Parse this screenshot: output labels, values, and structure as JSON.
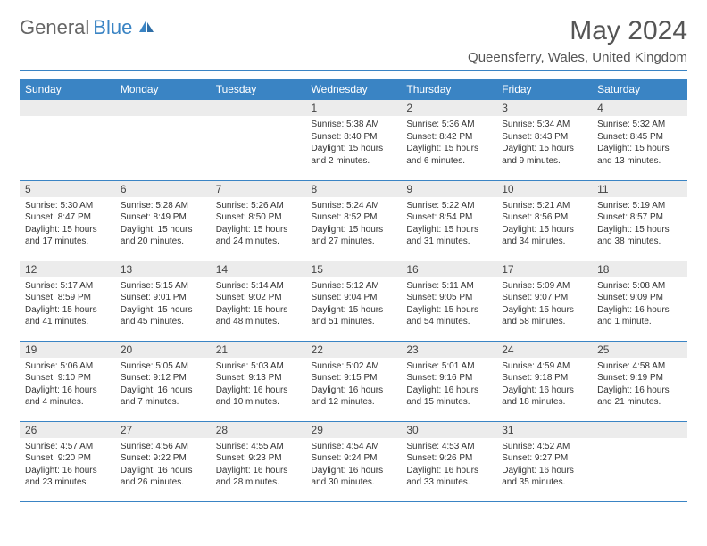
{
  "logo": {
    "text1": "General",
    "text2": "Blue"
  },
  "title": "May 2024",
  "location": "Queensferry, Wales, United Kingdom",
  "colors": {
    "accent": "#3a84c4",
    "header_text": "#ffffff",
    "daynum_bg": "#ececec",
    "body_text": "#333333",
    "title_text": "#555555",
    "logo_gray": "#666666"
  },
  "fonts": {
    "family": "Arial",
    "title_size": 30,
    "location_size": 15,
    "th_size": 12,
    "daynum_size": 12,
    "body_size": 10
  },
  "weekdays": [
    "Sunday",
    "Monday",
    "Tuesday",
    "Wednesday",
    "Thursday",
    "Friday",
    "Saturday"
  ],
  "weeks": [
    [
      null,
      null,
      null,
      {
        "n": "1",
        "sunrise": "5:38 AM",
        "sunset": "8:40 PM",
        "daylight": "15 hours and 2 minutes."
      },
      {
        "n": "2",
        "sunrise": "5:36 AM",
        "sunset": "8:42 PM",
        "daylight": "15 hours and 6 minutes."
      },
      {
        "n": "3",
        "sunrise": "5:34 AM",
        "sunset": "8:43 PM",
        "daylight": "15 hours and 9 minutes."
      },
      {
        "n": "4",
        "sunrise": "5:32 AM",
        "sunset": "8:45 PM",
        "daylight": "15 hours and 13 minutes."
      }
    ],
    [
      {
        "n": "5",
        "sunrise": "5:30 AM",
        "sunset": "8:47 PM",
        "daylight": "15 hours and 17 minutes."
      },
      {
        "n": "6",
        "sunrise": "5:28 AM",
        "sunset": "8:49 PM",
        "daylight": "15 hours and 20 minutes."
      },
      {
        "n": "7",
        "sunrise": "5:26 AM",
        "sunset": "8:50 PM",
        "daylight": "15 hours and 24 minutes."
      },
      {
        "n": "8",
        "sunrise": "5:24 AM",
        "sunset": "8:52 PM",
        "daylight": "15 hours and 27 minutes."
      },
      {
        "n": "9",
        "sunrise": "5:22 AM",
        "sunset": "8:54 PM",
        "daylight": "15 hours and 31 minutes."
      },
      {
        "n": "10",
        "sunrise": "5:21 AM",
        "sunset": "8:56 PM",
        "daylight": "15 hours and 34 minutes."
      },
      {
        "n": "11",
        "sunrise": "5:19 AM",
        "sunset": "8:57 PM",
        "daylight": "15 hours and 38 minutes."
      }
    ],
    [
      {
        "n": "12",
        "sunrise": "5:17 AM",
        "sunset": "8:59 PM",
        "daylight": "15 hours and 41 minutes."
      },
      {
        "n": "13",
        "sunrise": "5:15 AM",
        "sunset": "9:01 PM",
        "daylight": "15 hours and 45 minutes."
      },
      {
        "n": "14",
        "sunrise": "5:14 AM",
        "sunset": "9:02 PM",
        "daylight": "15 hours and 48 minutes."
      },
      {
        "n": "15",
        "sunrise": "5:12 AM",
        "sunset": "9:04 PM",
        "daylight": "15 hours and 51 minutes."
      },
      {
        "n": "16",
        "sunrise": "5:11 AM",
        "sunset": "9:05 PM",
        "daylight": "15 hours and 54 minutes."
      },
      {
        "n": "17",
        "sunrise": "5:09 AM",
        "sunset": "9:07 PM",
        "daylight": "15 hours and 58 minutes."
      },
      {
        "n": "18",
        "sunrise": "5:08 AM",
        "sunset": "9:09 PM",
        "daylight": "16 hours and 1 minute."
      }
    ],
    [
      {
        "n": "19",
        "sunrise": "5:06 AM",
        "sunset": "9:10 PM",
        "daylight": "16 hours and 4 minutes."
      },
      {
        "n": "20",
        "sunrise": "5:05 AM",
        "sunset": "9:12 PM",
        "daylight": "16 hours and 7 minutes."
      },
      {
        "n": "21",
        "sunrise": "5:03 AM",
        "sunset": "9:13 PM",
        "daylight": "16 hours and 10 minutes."
      },
      {
        "n": "22",
        "sunrise": "5:02 AM",
        "sunset": "9:15 PM",
        "daylight": "16 hours and 12 minutes."
      },
      {
        "n": "23",
        "sunrise": "5:01 AM",
        "sunset": "9:16 PM",
        "daylight": "16 hours and 15 minutes."
      },
      {
        "n": "24",
        "sunrise": "4:59 AM",
        "sunset": "9:18 PM",
        "daylight": "16 hours and 18 minutes."
      },
      {
        "n": "25",
        "sunrise": "4:58 AM",
        "sunset": "9:19 PM",
        "daylight": "16 hours and 21 minutes."
      }
    ],
    [
      {
        "n": "26",
        "sunrise": "4:57 AM",
        "sunset": "9:20 PM",
        "daylight": "16 hours and 23 minutes."
      },
      {
        "n": "27",
        "sunrise": "4:56 AM",
        "sunset": "9:22 PM",
        "daylight": "16 hours and 26 minutes."
      },
      {
        "n": "28",
        "sunrise": "4:55 AM",
        "sunset": "9:23 PM",
        "daylight": "16 hours and 28 minutes."
      },
      {
        "n": "29",
        "sunrise": "4:54 AM",
        "sunset": "9:24 PM",
        "daylight": "16 hours and 30 minutes."
      },
      {
        "n": "30",
        "sunrise": "4:53 AM",
        "sunset": "9:26 PM",
        "daylight": "16 hours and 33 minutes."
      },
      {
        "n": "31",
        "sunrise": "4:52 AM",
        "sunset": "9:27 PM",
        "daylight": "16 hours and 35 minutes."
      },
      null
    ]
  ],
  "labels": {
    "sunrise": "Sunrise:",
    "sunset": "Sunset:",
    "daylight": "Daylight:"
  }
}
